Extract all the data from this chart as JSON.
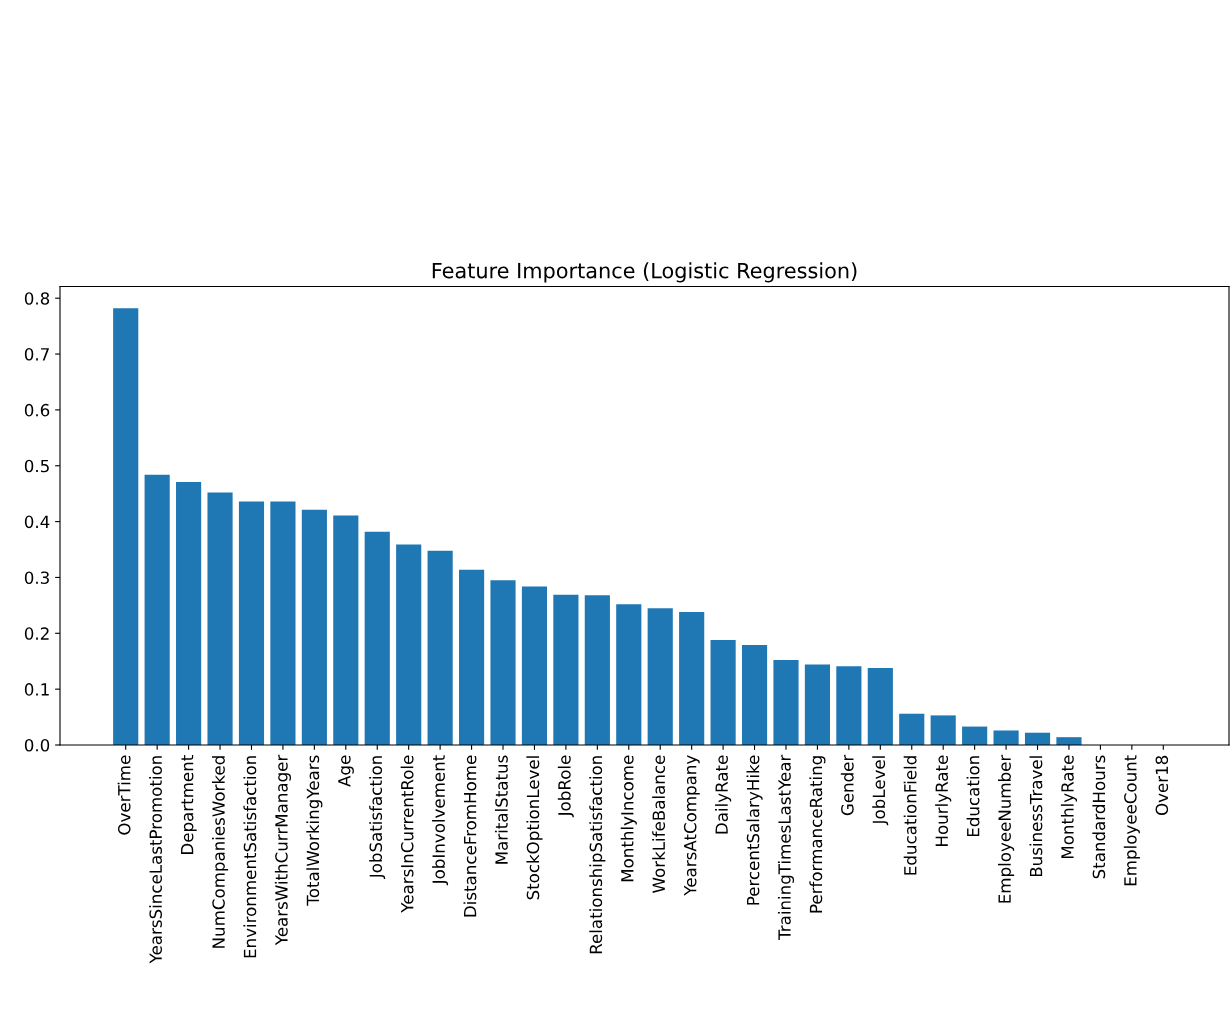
{
  "chart_data": {
    "type": "bar",
    "title": "Feature Importance (Logistic Regression)",
    "categories": [
      "OverTime",
      "YearsSinceLastPromotion",
      "Department",
      "NumCompaniesWorked",
      "EnvironmentSatisfaction",
      "YearsWithCurrManager",
      "TotalWorkingYears",
      "Age",
      "JobSatisfaction",
      "YearsInCurrentRole",
      "JobInvolvement",
      "DistanceFromHome",
      "MaritalStatus",
      "StockOptionLevel",
      "JobRole",
      "RelationshipSatisfaction",
      "MonthlyIncome",
      "WorkLifeBalance",
      "YearsAtCompany",
      "DailyRate",
      "PercentSalaryHike",
      "TrainingTimesLastYear",
      "PerformanceRating",
      "Gender",
      "JobLevel",
      "EducationField",
      "HourlyRate",
      "Education",
      "EmployeeNumber",
      "BusinessTravel",
      "MonthlyRate",
      "StandardHours",
      "EmployeeCount",
      "Over18"
    ],
    "values": [
      0.782,
      0.484,
      0.471,
      0.452,
      0.436,
      0.436,
      0.421,
      0.411,
      0.382,
      0.359,
      0.348,
      0.314,
      0.295,
      0.284,
      0.269,
      0.268,
      0.252,
      0.245,
      0.238,
      0.188,
      0.179,
      0.152,
      0.144,
      0.141,
      0.138,
      0.056,
      0.053,
      0.033,
      0.026,
      0.022,
      0.014,
      0.0,
      0.0,
      0.0
    ],
    "color": "#1f77b4",
    "ylim": [
      0,
      0.821
    ],
    "yticks": [
      {
        "value": 0,
        "label": "0.0"
      },
      0.1,
      0.2,
      0.3,
      0.4,
      0.5,
      0.6,
      0.7,
      0.8
    ],
    "grid": false
  }
}
